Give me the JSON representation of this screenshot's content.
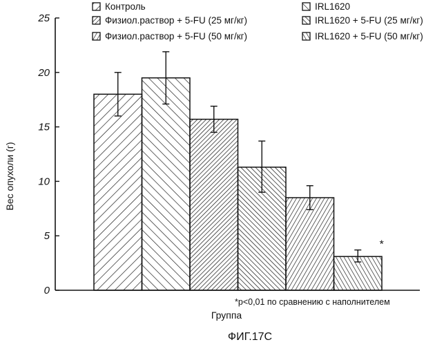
{
  "chart_data": {
    "type": "bar",
    "title": "",
    "xlabel": "Группа",
    "ylabel": "Вес опухоли (г)",
    "ylim": [
      0,
      25
    ],
    "yticks": [
      "0",
      "5",
      "10",
      "15",
      "20",
      "25"
    ],
    "grid": false,
    "legend_position": "top",
    "series": [
      {
        "name": "Контроль",
        "value": 18.0,
        "error_low": 16.0,
        "error_high": 20.0,
        "pattern": "hatch-wide"
      },
      {
        "name": "IRL1620",
        "value": 19.5,
        "error_low": 17.1,
        "error_high": 21.9,
        "pattern": "backhatch-wide"
      },
      {
        "name": "Физиол.раствор + 5-FU (25 мг/кг)",
        "value": 15.7,
        "error_low": 14.5,
        "error_high": 16.9,
        "pattern": "hatch-dense"
      },
      {
        "name": "IRL1620 + 5-FU (25 мг/кг)",
        "value": 11.3,
        "error_low": 9.0,
        "error_high": 13.7,
        "pattern": "backhatch-dense"
      },
      {
        "name": "Физиол.раствор + 5-FU (50 мг/кг)",
        "value": 8.5,
        "error_low": 7.4,
        "error_high": 9.6,
        "pattern": "hatch-steep"
      },
      {
        "name": "IRL1620 + 5-FU (50 мг/кг)",
        "value": 3.1,
        "error_low": 2.6,
        "error_high": 3.7,
        "pattern": "backhatch-steep",
        "significance": "*"
      }
    ],
    "annotations": [
      "*p<0,01 по сравнению с наполнителем"
    ]
  },
  "legend": {
    "items": [
      {
        "label": "Контроль",
        "pattern": "hatch-wide"
      },
      {
        "label": "IRL1620",
        "pattern": "backhatch-wide"
      },
      {
        "label": "Физиол.раствор + 5-FU (25 мг/кг)",
        "pattern": "hatch-dense"
      },
      {
        "label": "IRL1620 + 5-FU (25 мг/кг)",
        "pattern": "backhatch-dense"
      },
      {
        "label": "Физиол.раствор + 5-FU (50 мг/кг)",
        "pattern": "hatch-steep"
      },
      {
        "label": "IRL1620 + 5-FU (50 мг/кг)",
        "pattern": "backhatch-steep"
      }
    ]
  },
  "footnote": "*p<0,01 по сравнению с наполнителем",
  "figure_caption": "ФИГ.17C",
  "colors": {
    "ink": "#111111",
    "background": "#ffffff"
  }
}
